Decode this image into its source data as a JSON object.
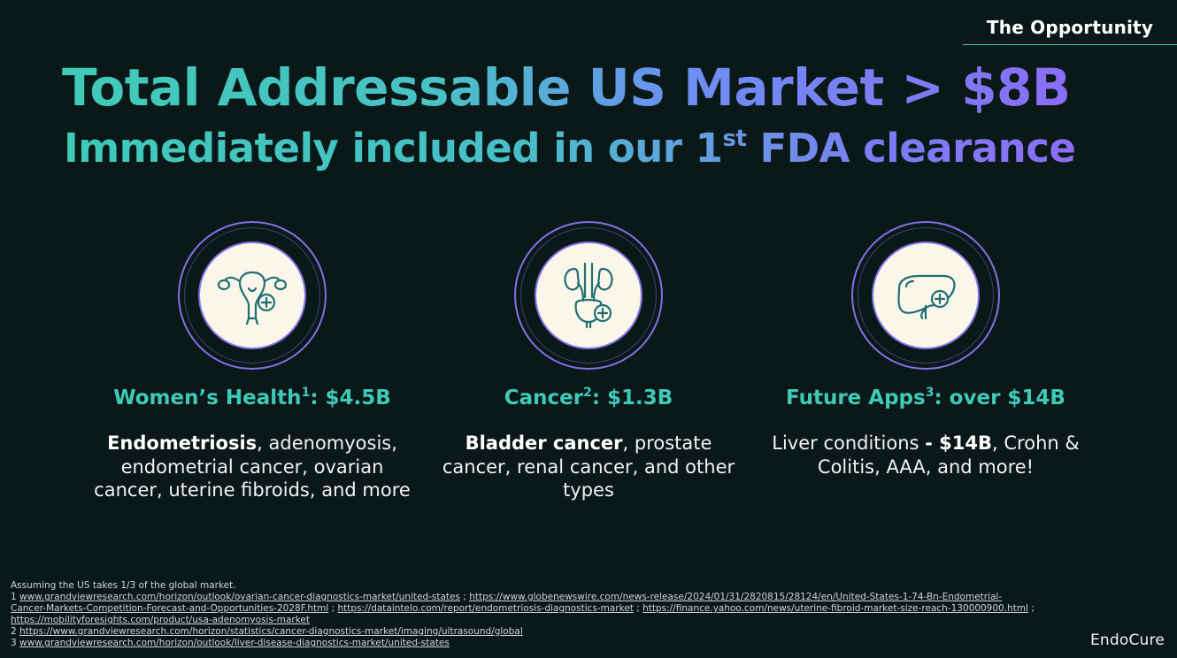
{
  "section_tag": "The Opportunity",
  "headline": "Total Addressable US Market > $8B",
  "subheadline": {
    "before": "Immediately included in our 1",
    "sup": "st",
    "after": " FDA clearance"
  },
  "categories": [
    {
      "title_before": "Women’s Health",
      "title_sup": "1",
      "title_after": ": $4.5B",
      "icon": "uterus-plus-icon",
      "desc_bold": "Endometriosis",
      "desc_rest": ", adenomyosis, endometrial cancer, ovarian cancer, uterine fibroids, and more"
    },
    {
      "title_before": "Cancer",
      "title_sup": "2",
      "title_after": ": $1.3B",
      "icon": "bladder-kidney-plus-icon",
      "desc_bold": "Bladder cancer",
      "desc_rest": ", prostate cancer, renal cancer, and other types"
    },
    {
      "title_before": "Future Apps",
      "title_sup": "3",
      "title_after": ": over $14B",
      "icon": "liver-plus-icon",
      "desc_pre": "Liver conditions ",
      "desc_bold": "- $14B",
      "desc_rest": ", Crohn & Colitis, AAA, and more!"
    }
  ],
  "footnotes": {
    "intro": "Assuming the US takes 1/3 of the global market.",
    "n1": {
      "num": "1 ",
      "links": [
        "www.grandviewresearch.com/horizon/outlook/ovarian-cancer-diagnostics-market/united-states",
        "https://www.globenewswire.com/news-release/2024/01/31/2820815/28124/en/United-States-1-74-Bn-Endometrial-Cancer-Markets-Competition-Forecast-and-Opportunities-2028F.html",
        "https://dataintelo.com/report/endometriosis-diagnostics-market",
        "https://finance.yahoo.com/news/uterine-fibroid-market-size-reach-130000900.html",
        "https://mobilityforesights.com/product/usa-adenomyosis-market"
      ],
      "sep": " ; "
    },
    "n2": {
      "num": "2 ",
      "link": "https://www.grandviewresearch.com/horizon/statistics/cancer-diagnostics-market/imaging/ultrasound/global"
    },
    "n3": {
      "num": "3 ",
      "link": "www.grandviewresearch.com/horizon/outlook/liver-disease-diagnostics-market/united-states"
    }
  },
  "logo": "EndoCure",
  "colors": {
    "background": "#0b1818",
    "teal": "#3fcab8",
    "purple": "#8a6ef6",
    "icon_stroke": "#1f6f72",
    "icon_bg": "#fbf6ea"
  }
}
